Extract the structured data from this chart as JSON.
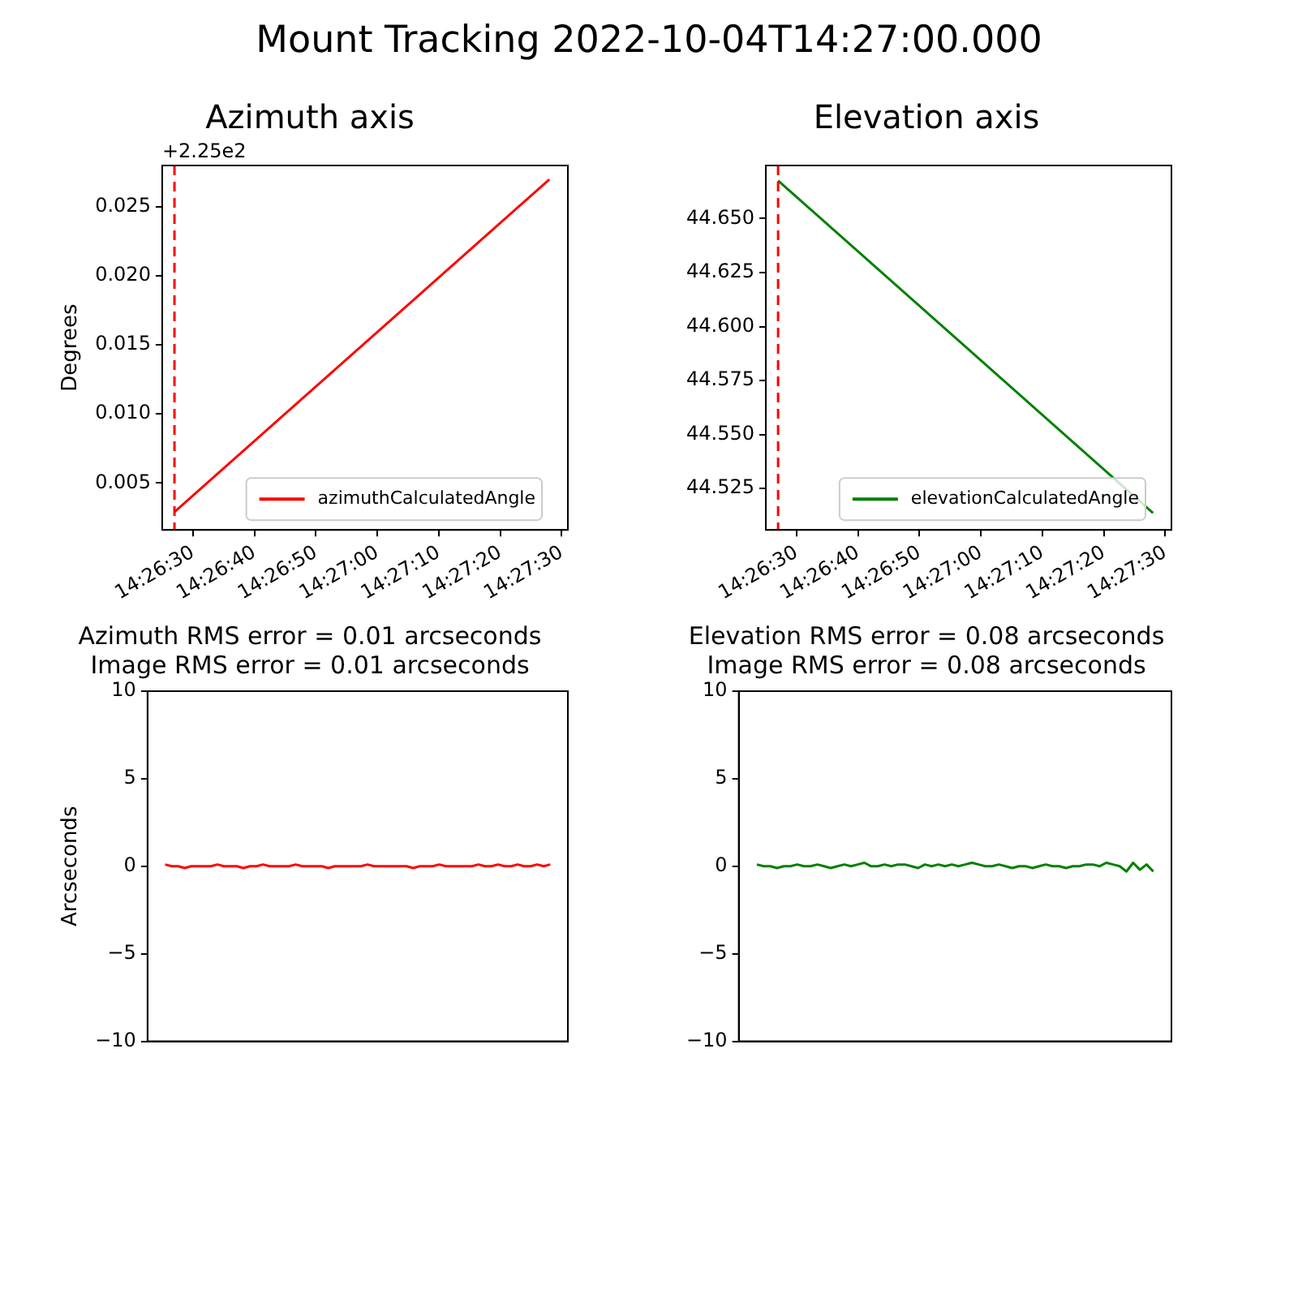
{
  "chart_data": [
    {
      "type": "other",
      "title": "Mount Tracking 2022-10-04T14:27:00.000"
    },
    {
      "type": "line",
      "title": "Azimuth axis",
      "ylabel": "Degrees",
      "annotations": [
        "+2.25e2"
      ],
      "legend": "bottom right",
      "xlim": [
        "2022-10-04T14:26:25",
        "2022-10-04T14:27:31"
      ],
      "xticks": [
        {
          "value": "2022-10-04T14:26:30",
          "label": "14:26:30"
        },
        {
          "value": "2022-10-04T14:26:40",
          "label": "14:26:40"
        },
        {
          "value": "2022-10-04T14:26:50",
          "label": "14:26:50"
        },
        {
          "value": "2022-10-04T14:27:00",
          "label": "14:27:00"
        },
        {
          "value": "2022-10-04T14:27:10",
          "label": "14:27:10"
        },
        {
          "value": "2022-10-04T14:27:20",
          "label": "14:27:20"
        },
        {
          "value": "2022-10-04T14:27:30",
          "label": "14:27:30"
        }
      ],
      "ylim": [
        0.0016,
        0.028
      ],
      "yticks": [
        0.005,
        {
          "value": 0.01,
          "label": "0.010"
        },
        0.015,
        {
          "value": 0.02,
          "label": "0.020"
        },
        0.025
      ],
      "x": [
        "2022-10-04T14:26:27",
        "2022-10-04T14:27:28"
      ],
      "series": [
        {
          "name": "azimuthCalculatedAngle",
          "color": "#ff0000",
          "values": [
            0.0029,
            0.027
          ]
        }
      ],
      "ref_lines": [
        {
          "axis": "x",
          "value": "2022-10-04T14:26:27",
          "color": "#ff0000",
          "line_style": "dashed"
        }
      ]
    },
    {
      "type": "line",
      "title": "Elevation axis",
      "legend": "bottom right",
      "xlim": [
        "2022-10-04T14:26:25",
        "2022-10-04T14:27:31"
      ],
      "xticks": [
        {
          "value": "2022-10-04T14:26:30",
          "label": "14:26:30"
        },
        {
          "value": "2022-10-04T14:26:40",
          "label": "14:26:40"
        },
        {
          "value": "2022-10-04T14:26:50",
          "label": "14:26:50"
        },
        {
          "value": "2022-10-04T14:27:00",
          "label": "14:27:00"
        },
        {
          "value": "2022-10-04T14:27:10",
          "label": "14:27:10"
        },
        {
          "value": "2022-10-04T14:27:20",
          "label": "14:27:20"
        },
        {
          "value": "2022-10-04T14:27:30",
          "label": "14:27:30"
        }
      ],
      "ylim": [
        44.5058,
        44.6746
      ],
      "yticks": [
        {
          "value": 44.525,
          "label": "44.525"
        },
        {
          "value": 44.55,
          "label": "44.550"
        },
        {
          "value": 44.575,
          "label": "44.575"
        },
        {
          "value": 44.6,
          "label": "44.600"
        },
        {
          "value": 44.625,
          "label": "44.625"
        },
        {
          "value": 44.65,
          "label": "44.650"
        }
      ],
      "x": [
        "2022-10-04T14:26:27",
        "2022-10-04T14:27:28"
      ],
      "series": [
        {
          "name": "elevationCalculatedAngle",
          "color": "#008000",
          "values": [
            44.6676,
            44.5136
          ]
        }
      ],
      "ref_lines": [
        {
          "axis": "x",
          "value": "2022-10-04T14:26:27",
          "color": "#ff0000",
          "line_style": "dashed"
        }
      ]
    },
    {
      "type": "line",
      "title": "Azimuth RMS error = 0.01 arcseconds",
      "subtitle": "Image RMS error = 0.01 arcseconds",
      "ylabel": "Arcseconds",
      "tick_labels": "y",
      "categories": [
        null,
        null,
        null,
        null,
        null,
        null,
        null,
        null,
        null,
        null,
        null,
        null,
        null,
        null,
        null,
        null,
        null,
        null,
        null,
        null,
        null,
        null,
        null,
        null,
        null,
        null,
        null,
        null,
        null,
        null,
        null,
        null,
        null,
        null,
        null,
        null,
        null,
        null,
        null,
        null,
        null,
        null,
        null,
        null,
        null,
        null,
        null,
        null,
        null,
        null,
        null,
        null,
        null,
        null,
        null,
        null,
        null,
        null,
        null,
        null
      ],
      "ylim": [
        -10,
        10
      ],
      "yticks": [
        {
          "value": -10,
          "label": "−10"
        },
        {
          "value": -5,
          "label": "−5"
        },
        0,
        5,
        10
      ],
      "series": [
        {
          "color": "#ff0000",
          "values": [
            0.1,
            0.0,
            0.0,
            -0.1,
            0.0,
            0.0,
            0.0,
            0.0,
            0.1,
            0.0,
            0.0,
            0.0,
            -0.1,
            0.0,
            0.0,
            0.1,
            0.0,
            0.0,
            0.0,
            0.0,
            0.1,
            0.0,
            0.0,
            0.0,
            0.0,
            -0.1,
            0.0,
            0.0,
            0.0,
            0.0,
            0.0,
            0.1,
            0.0,
            0.0,
            0.0,
            0.0,
            0.0,
            0.0,
            -0.1,
            0.0,
            0.0,
            0.0,
            0.1,
            0.0,
            0.0,
            0.0,
            0.0,
            0.0,
            0.1,
            0.0,
            0.0,
            0.1,
            0.0,
            0.0,
            0.1,
            0.0,
            0.0,
            0.1,
            0.0,
            0.1
          ]
        }
      ]
    },
    {
      "type": "line",
      "title": "Elevation RMS error = 0.08 arcseconds",
      "subtitle": "Image RMS error = 0.08 arcseconds",
      "tick_labels": "y",
      "categories": [
        null,
        null,
        null,
        null,
        null,
        null,
        null,
        null,
        null,
        null,
        null,
        null,
        null,
        null,
        null,
        null,
        null,
        null,
        null,
        null,
        null,
        null,
        null,
        null,
        null,
        null,
        null,
        null,
        null,
        null,
        null,
        null,
        null,
        null,
        null,
        null,
        null,
        null,
        null,
        null,
        null,
        null,
        null,
        null,
        null,
        null,
        null,
        null,
        null,
        null,
        null,
        null,
        null,
        null,
        null,
        null,
        null,
        null,
        null,
        null
      ],
      "ylim": [
        -10,
        10
      ],
      "yticks": [
        {
          "value": -10,
          "label": "−10"
        },
        {
          "value": -5,
          "label": "−5"
        },
        0,
        5,
        10
      ],
      "series": [
        {
          "color": "#008000",
          "values": [
            0.1,
            0.0,
            0.0,
            -0.1,
            0.0,
            0.0,
            0.1,
            0.0,
            0.0,
            0.1,
            0.0,
            -0.1,
            0.0,
            0.1,
            0.0,
            0.1,
            0.2,
            0.0,
            0.0,
            0.1,
            0.0,
            0.1,
            0.1,
            0.0,
            -0.1,
            0.1,
            0.0,
            0.1,
            0.0,
            0.1,
            0.0,
            0.1,
            0.2,
            0.1,
            0.0,
            0.0,
            0.1,
            0.0,
            -0.1,
            0.0,
            0.0,
            -0.1,
            0.0,
            0.1,
            0.0,
            0.0,
            -0.1,
            0.0,
            0.0,
            0.1,
            0.1,
            0.0,
            0.2,
            0.1,
            0.0,
            -0.3,
            0.2,
            -0.2,
            0.1,
            -0.3
          ]
        }
      ]
    }
  ]
}
